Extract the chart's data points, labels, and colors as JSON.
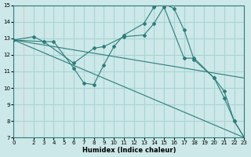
{
  "xlabel": "Humidex (Indice chaleur)",
  "bg_color": "#cce8e8",
  "line_color": "#2d7d7d",
  "major_grid_color": "#aad4d4",
  "minor_grid_color": "#e8b0b0",
  "xmin": 0,
  "xmax": 23,
  "ymin": 7,
  "ymax": 15,
  "line1_x": [
    0,
    2,
    3,
    4,
    6,
    7,
    8,
    9,
    10,
    11,
    13,
    14,
    15,
    16,
    17,
    18,
    20,
    21,
    22,
    23
  ],
  "line1_y": [
    12.9,
    13.1,
    12.8,
    12.8,
    11.2,
    10.3,
    10.2,
    11.4,
    12.5,
    13.2,
    13.9,
    14.9,
    15.1,
    14.8,
    13.5,
    11.7,
    10.6,
    9.4,
    8.0,
    7.0
  ],
  "line2_x": [
    0,
    3,
    6,
    8,
    9,
    11,
    13,
    14,
    15,
    17,
    18,
    20,
    21,
    22,
    23
  ],
  "line2_y": [
    12.9,
    12.8,
    11.5,
    12.4,
    12.5,
    13.1,
    13.2,
    13.9,
    14.9,
    11.8,
    11.8,
    10.6,
    9.8,
    8.0,
    7.0
  ],
  "line3_x": [
    0,
    23
  ],
  "line3_y": [
    12.9,
    10.6
  ],
  "line4_x": [
    0,
    23
  ],
  "line4_y": [
    12.9,
    7.0
  ],
  "yticks": [
    7,
    8,
    9,
    10,
    11,
    12,
    13,
    14,
    15
  ],
  "xticks": [
    0,
    2,
    3,
    4,
    5,
    6,
    7,
    8,
    9,
    10,
    11,
    12,
    13,
    14,
    15,
    16,
    17,
    18,
    19,
    20,
    21,
    22,
    23
  ],
  "xlabel_fontsize": 6,
  "tick_fontsize": 5,
  "lw": 0.8,
  "ms": 2.0
}
